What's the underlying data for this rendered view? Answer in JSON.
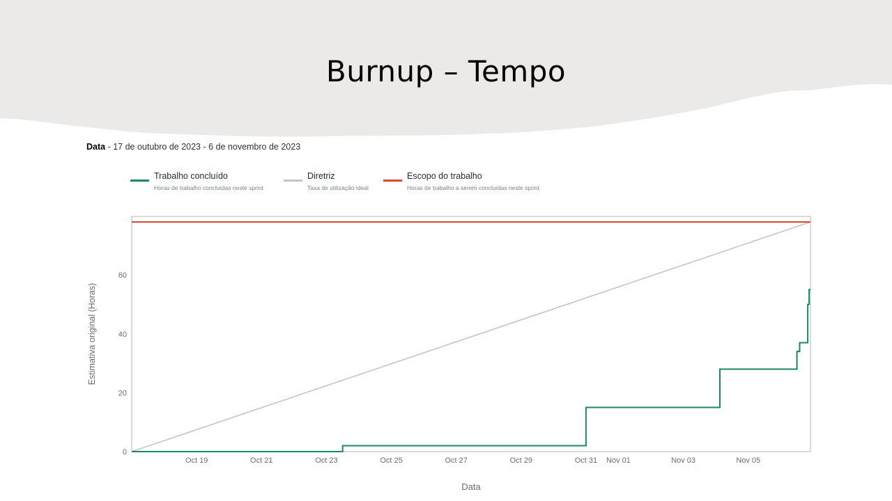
{
  "slide": {
    "title": "Burnup – Tempo"
  },
  "date_range": {
    "label": "Data",
    "separator": " - ",
    "value": "17 de outubro de 2023 - 6 de novembro de 2023"
  },
  "legend": [
    {
      "label": "Trabalho concluído",
      "description": "Horas de trabalho concluídas neste sprint",
      "color": "#1a8a5e"
    },
    {
      "label": "Diretriz",
      "description": "Taxa de utilização ideal",
      "color": "#c4c4c4"
    },
    {
      "label": "Escopo do trabalho",
      "description": "Horas de trabalho a serem concluídas neste sprint",
      "color": "#e0452b"
    }
  ],
  "colors": {
    "header_background": "#ebeae8",
    "grid": "#cfcfcf",
    "axis_text": "#6b6b6b"
  },
  "chart_data": {
    "type": "line",
    "xlabel": "Data",
    "ylabel": "Estimativa original (Horas)",
    "xlim": [
      "2023-10-17",
      "2023-11-06 22:00"
    ],
    "ylim": [
      0,
      78
    ],
    "yticks": [
      0,
      20,
      40,
      60
    ],
    "xticks": [
      {
        "date": "2023-10-19",
        "label": "Oct 19"
      },
      {
        "date": "2023-10-21",
        "label": "Oct 21"
      },
      {
        "date": "2023-10-23",
        "label": "Oct 23"
      },
      {
        "date": "2023-10-25",
        "label": "Oct 25"
      },
      {
        "date": "2023-10-27",
        "label": "Oct 27"
      },
      {
        "date": "2023-10-29",
        "label": "Oct 29"
      },
      {
        "date": "2023-10-31",
        "label": "Oct 31"
      },
      {
        "date": "2023-11-01",
        "label": "Nov 01"
      },
      {
        "date": "2023-11-03",
        "label": "Nov 03"
      },
      {
        "date": "2023-11-05",
        "label": "Nov 05"
      }
    ],
    "grid": false,
    "legend_position": "top",
    "series": [
      {
        "name": "Escopo do trabalho",
        "color": "#e0452b",
        "points": [
          [
            "2023-10-17",
            78
          ],
          [
            "2023-11-06 22:00",
            78
          ]
        ]
      },
      {
        "name": "Diretriz",
        "color": "#c4c4c4",
        "points": [
          [
            "2023-10-17",
            0
          ],
          [
            "2023-11-06 22:00",
            78
          ]
        ]
      },
      {
        "name": "Trabalho concluído",
        "color": "#1a8a5e",
        "step": true,
        "points": [
          [
            "2023-10-17",
            0
          ],
          [
            "2023-10-23 12:00",
            2
          ],
          [
            "2023-10-31",
            15
          ],
          [
            "2023-11-04 03:00",
            28
          ],
          [
            "2023-11-06 12:00",
            34
          ],
          [
            "2023-11-06 14:00",
            37
          ],
          [
            "2023-11-06 20:00",
            50
          ],
          [
            "2023-11-06 21:00",
            55
          ]
        ]
      }
    ]
  }
}
